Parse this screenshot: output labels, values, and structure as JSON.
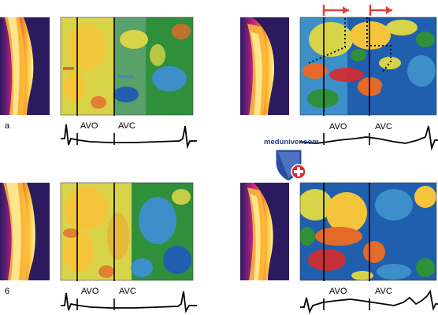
{
  "panels": [
    {
      "label": "a",
      "markers": [
        "AVO",
        "AVC"
      ]
    },
    {
      "label": "",
      "markers": [
        "AVO",
        "AVC"
      ]
    },
    {
      "label": "6",
      "markers": [
        "AVO",
        "AVC"
      ]
    },
    {
      "label": "",
      "markers": [
        "AVO",
        "AVC"
      ]
    }
  ],
  "watermark": {
    "text": "meduniver.com"
  },
  "colors": {
    "m_mode": [
      "#2c1a5e",
      "#7a1f78",
      "#d4237a",
      "#f36a2e",
      "#fbc13a",
      "#fff4a0"
    ],
    "tissue_map": [
      "#1f5fae",
      "#3c8fc9",
      "#2f8f3a",
      "#d8d44a",
      "#f4c53a",
      "#e46a2a",
      "#d72a2a"
    ],
    "interval_arrow": "#e0403a",
    "logo_shield": "#2a4fa0",
    "logo_cross": "#d9282f"
  }
}
